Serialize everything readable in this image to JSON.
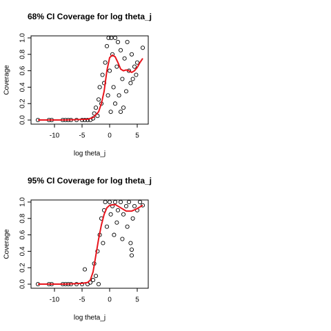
{
  "chart_data": [
    {
      "type": "scatter",
      "title": "68% CI Coverage for log theta_j",
      "x_label": "log theta_j",
      "y_label": "Coverage",
      "xlim": [
        -14.25,
        7
      ],
      "ylim": [
        -0.05,
        1.025
      ],
      "xticks": [
        -10,
        -5,
        0,
        5
      ],
      "yticks": [
        {
          "value": 0,
          "label": "0.0"
        },
        0.2,
        0.4,
        0.6,
        0.8,
        {
          "value": 1,
          "label": "1.0"
        }
      ],
      "series": [
        {
          "mode": "markers",
          "color": "#000000",
          "x": [
            -13,
            -11,
            -10.5,
            -8.5,
            -8,
            -7.5,
            -7,
            -6,
            -5,
            -4.5,
            -4,
            -3.5,
            -3,
            -2.8,
            -2.5,
            -2.2,
            -2,
            -1.8,
            -1.5,
            -1.3,
            -1,
            -0.8,
            -0.5,
            -0.3,
            -0.2,
            0,
            0.2,
            0.3,
            0.5,
            0.7,
            1,
            1,
            1.3,
            1.5,
            1.7,
            2,
            2,
            2.3,
            2.5,
            2.7,
            3,
            3.2,
            3.5,
            3.8,
            4,
            4.2,
            4.5,
            4.8,
            5,
            6
          ],
          "values": [
            0,
            0,
            0,
            0,
            0,
            0,
            0,
            0,
            0,
            0,
            0,
            0,
            0.02,
            0.08,
            0.15,
            0.05,
            0.25,
            0.4,
            0.2,
            0.55,
            0.45,
            0.7,
            0.9,
            0.3,
            1.0,
            0.6,
            0.1,
            1.0,
            0.8,
            0.4,
            1.0,
            0.2,
            0.65,
            0.95,
            0.3,
            0.85,
            0.1,
            0.5,
            0.15,
            0.75,
            0.35,
            0.95,
            0.6,
            0.45,
            0.8,
            0.5,
            0.65,
            0.55,
            0.7,
            0.88
          ]
        },
        {
          "mode": "line",
          "color": "#e8141c",
          "x": [
            -13,
            -8,
            -4,
            -3,
            -2,
            -1.5,
            -1,
            -0.5,
            0,
            0.5,
            1,
            1.5,
            2,
            2.5,
            3,
            3.5,
            4,
            4.5,
            5,
            5.5,
            6
          ],
          "values": [
            0,
            0,
            0.01,
            0.03,
            0.1,
            0.2,
            0.35,
            0.6,
            0.76,
            0.79,
            0.77,
            0.7,
            0.62,
            0.6,
            0.61,
            0.6,
            0.58,
            0.6,
            0.64,
            0.7,
            0.75
          ]
        }
      ]
    },
    {
      "type": "scatter",
      "title": "95% CI Coverage for  log theta_j",
      "x_label": "log theta_j",
      "y_label": "Coverage",
      "xlim": [
        -14.25,
        7
      ],
      "ylim": [
        -0.05,
        1.025
      ],
      "xticks": [
        -10,
        -5,
        0,
        5
      ],
      "yticks": [
        {
          "value": 0,
          "label": "0.0"
        },
        0.2,
        0.4,
        0.6,
        0.8,
        {
          "value": 1,
          "label": "1.0"
        }
      ],
      "series": [
        {
          "mode": "markers",
          "color": "#000000",
          "x": [
            -13,
            -11,
            -10.5,
            -8.5,
            -8,
            -7.5,
            -7,
            -6,
            -5,
            -4.5,
            -4,
            -3.5,
            -3,
            -2.8,
            -2.5,
            -2.2,
            -2,
            -1.8,
            -1.5,
            -1.2,
            -1,
            -0.8,
            -0.5,
            0,
            0.2,
            0.5,
            0.8,
            1,
            1.3,
            1.5,
            2,
            2.3,
            2.5,
            3,
            3.2,
            3.5,
            3.8,
            4,
            4,
            4.2,
            4.5,
            5,
            5.5,
            6
          ],
          "values": [
            0,
            0,
            0,
            0,
            0,
            0,
            0,
            0,
            0,
            0.18,
            0,
            0.02,
            0.05,
            0.25,
            0.1,
            0.4,
            0,
            0.6,
            0.8,
            0.5,
            0.9,
            1.0,
            0.7,
            1.0,
            0.85,
            0.95,
            0.6,
            1.0,
            0.75,
            0.9,
            1.0,
            0.55,
            0.85,
            0.95,
            0.7,
            1.0,
            0.5,
            0.35,
            0.42,
            0.8,
            0.95,
            0.9,
            1.0,
            0.96
          ]
        },
        {
          "mode": "line",
          "color": "#e8141c",
          "x": [
            -13,
            -8,
            -5,
            -4,
            -3.5,
            -3,
            -2.5,
            -2,
            -1.5,
            -1,
            -0.5,
            0,
            1,
            2,
            3,
            4,
            5,
            6
          ],
          "values": [
            0,
            0,
            0.01,
            0.02,
            0.05,
            0.15,
            0.35,
            0.55,
            0.72,
            0.85,
            0.93,
            0.96,
            0.97,
            0.93,
            0.89,
            0.89,
            0.92,
            0.96
          ]
        }
      ]
    }
  ]
}
